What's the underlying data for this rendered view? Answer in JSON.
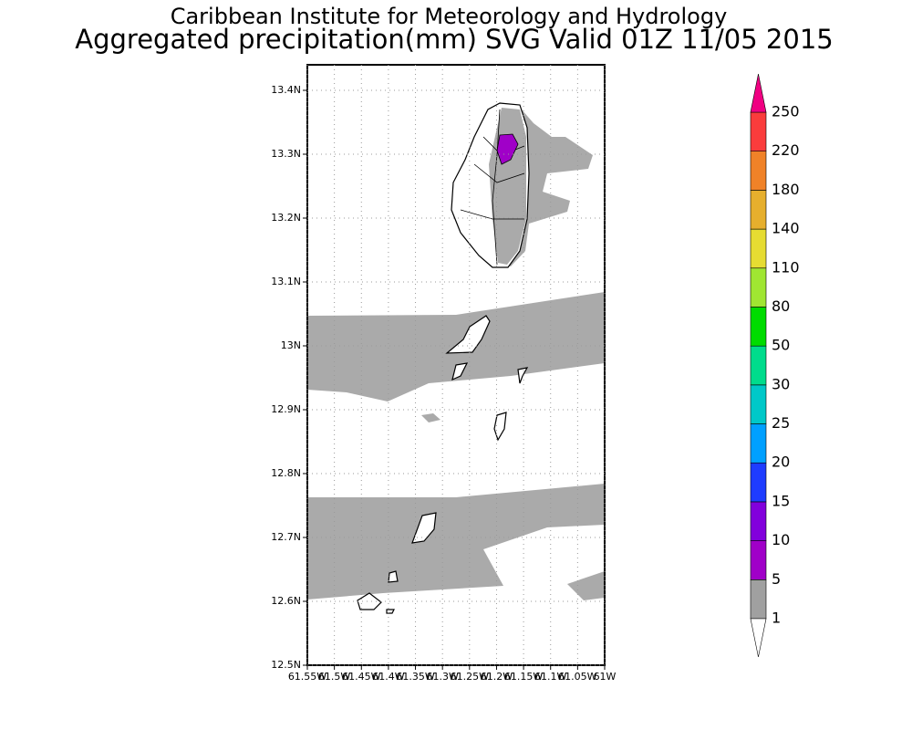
{
  "title": "Caribbean Institute for Meteorology and Hydrology",
  "subtitle": "Aggregated precipitation(mm) SVG Valid 01Z 11/05 2015",
  "map": {
    "xlim": [
      -61.55,
      -61.0
    ],
    "ylim": [
      12.5,
      13.44
    ],
    "grid": true,
    "xticks": [
      {
        "value": -61.55,
        "label": "61.55W"
      },
      {
        "value": -61.5,
        "label": "61.5W"
      },
      {
        "value": -61.45,
        "label": "61.45W"
      },
      {
        "value": -61.4,
        "label": "61.4W"
      },
      {
        "value": -61.35,
        "label": "61.35W"
      },
      {
        "value": -61.3,
        "label": "61.3W"
      },
      {
        "value": -61.25,
        "label": "61.25W"
      },
      {
        "value": -61.2,
        "label": "61.2W"
      },
      {
        "value": -61.15,
        "label": "61.15W"
      },
      {
        "value": -61.1,
        "label": "61.1W"
      },
      {
        "value": -61.05,
        "label": "61.05W"
      },
      {
        "value": -61.0,
        "label": "61W"
      }
    ],
    "yticks": [
      {
        "value": 12.5,
        "label": "12.5N"
      },
      {
        "value": 12.6,
        "label": "12.6N"
      },
      {
        "value": 12.7,
        "label": "12.7N"
      },
      {
        "value": 12.8,
        "label": "12.8N"
      },
      {
        "value": 12.9,
        "label": "12.9N"
      },
      {
        "value": 13.0,
        "label": "13N"
      },
      {
        "value": 13.1,
        "label": "13.1N"
      },
      {
        "value": 13.2,
        "label": "13.2N"
      },
      {
        "value": 13.3,
        "label": "13.3N"
      },
      {
        "value": 13.4,
        "label": "13.4N"
      }
    ]
  },
  "colorbar": {
    "levels": [
      1,
      5,
      10,
      15,
      20,
      25,
      30,
      50,
      80,
      110,
      140,
      180,
      220,
      250
    ],
    "colors": [
      "#ffffff",
      "#a0a0a0",
      "#a000c8",
      "#8200dc",
      "#1e3cff",
      "#00a0ff",
      "#00c8c8",
      "#00dc8c",
      "#00dc00",
      "#a0e632",
      "#e6dc32",
      "#e6af2d",
      "#f08228",
      "#fa3c3c",
      "#f00082"
    ]
  }
}
